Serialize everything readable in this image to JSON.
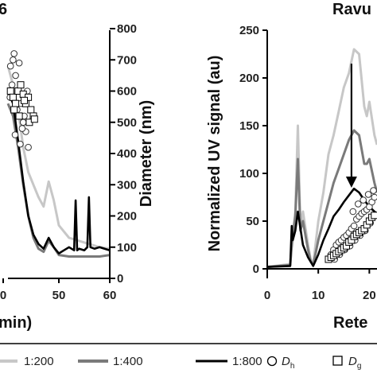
{
  "legend": {
    "entries": [
      {
        "label": "1:200",
        "color": "#c7c7c7",
        "kind": "line"
      },
      {
        "label": "1:400",
        "color": "#7a7a7a",
        "kind": "line"
      },
      {
        "label": "1:800",
        "color": "#000000",
        "kind": "line"
      },
      {
        "label": "D",
        "sub": "h",
        "kind": "circle-marker"
      },
      {
        "label": "D",
        "sub": "g",
        "kind": "square-marker"
      }
    ]
  },
  "chart_data": [
    {
      "type": "line",
      "panel": "left",
      "title": "6",
      "xlabel": "min)",
      "ylabel_right": "Diameter (nm)",
      "x_ticks": [
        "0",
        "50",
        "60"
      ],
      "xlim": [
        40,
        60
      ],
      "y_ticks": [
        "0",
        "100",
        "200",
        "300",
        "400",
        "500",
        "600",
        "700",
        "800"
      ],
      "ylim": [
        0,
        800
      ],
      "series": [
        {
          "name": "1:200",
          "color": "#c7c7c7",
          "x": [
            40,
            41,
            42,
            43,
            44,
            45,
            46,
            47,
            48,
            49,
            50,
            52,
            54,
            55,
            56,
            58,
            60
          ],
          "y": [
            680,
            620,
            540,
            420,
            340,
            300,
            260,
            230,
            310,
            250,
            170,
            130,
            120,
            115,
            110,
            100,
            95
          ]
        },
        {
          "name": "1:400",
          "color": "#7a7a7a",
          "x": [
            40,
            41,
            42,
            43,
            44,
            45,
            46,
            47,
            48,
            49,
            50,
            52,
            54,
            56,
            58,
            60
          ],
          "y": [
            560,
            520,
            420,
            300,
            200,
            130,
            95,
            85,
            120,
            100,
            75,
            70,
            70,
            70,
            70,
            75
          ]
        },
        {
          "name": "1:800",
          "color": "#000000",
          "x": [
            40,
            41,
            42,
            43,
            44,
            45,
            46,
            47,
            48,
            49,
            50,
            51,
            52,
            53,
            53.3,
            53.6,
            54,
            55,
            55.6,
            55.9,
            56.2,
            57,
            58,
            60
          ],
          "y": [
            600,
            560,
            440,
            310,
            200,
            140,
            110,
            95,
            130,
            100,
            80,
            90,
            100,
            90,
            250,
            90,
            95,
            90,
            100,
            260,
            100,
            95,
            100,
            90
          ]
        }
      ],
      "scatter": [
        {
          "name": "Dh",
          "marker": "circle",
          "x": [
            40.5,
            41,
            41.5,
            42,
            42.5,
            43,
            43.5,
            44,
            41.2,
            42.2,
            43.2,
            40.8,
            41.8,
            42.8,
            43.8,
            40.4,
            41.4,
            42.4
          ],
          "y": [
            680,
            700,
            650,
            600,
            560,
            500,
            470,
            420,
            720,
            690,
            520,
            620,
            540,
            480,
            600,
            580,
            460,
            430
          ]
        },
        {
          "name": "Dg",
          "marker": "square",
          "x": [
            40.5,
            41,
            41.5,
            42,
            42.5,
            43,
            43.5,
            44,
            44.5,
            45,
            41.2,
            42.2,
            43.2,
            44.2,
            45.2
          ],
          "y": [
            600,
            580,
            560,
            600,
            620,
            590,
            560,
            580,
            540,
            520,
            540,
            520,
            570,
            500,
            510
          ]
        }
      ]
    },
    {
      "type": "line",
      "panel": "right",
      "title": "Ravu",
      "xlabel": "Rete",
      "ylabel": "Normalized UV signal (au)",
      "x_ticks": [
        "0",
        "10",
        "20"
      ],
      "xlim": [
        0,
        21.5
      ],
      "y_ticks": [
        "0",
        "50",
        "100",
        "150",
        "200",
        "250"
      ],
      "ylim": [
        0,
        250
      ],
      "series": [
        {
          "name": "1:200",
          "color": "#c7c7c7",
          "x": [
            0,
            4.5,
            4.7,
            5,
            5.5,
            6,
            6.5,
            7,
            8,
            8.5,
            9,
            10,
            11,
            12,
            13,
            14,
            15,
            16,
            17,
            18,
            19,
            19.5,
            20,
            21,
            21.5
          ],
          "y": [
            2,
            5,
            20,
            35,
            60,
            150,
            45,
            60,
            25,
            10,
            5,
            50,
            80,
            120,
            140,
            165,
            190,
            205,
            230,
            225,
            170,
            160,
            175,
            140,
            130
          ]
        },
        {
          "name": "1:400",
          "color": "#7a7a7a",
          "x": [
            0,
            4.5,
            4.7,
            5,
            5.5,
            6,
            6.5,
            7,
            8,
            8.5,
            9,
            10,
            11,
            12,
            13,
            14,
            15,
            16,
            17,
            18,
            19,
            19.5,
            20,
            21,
            21.5
          ],
          "y": [
            2,
            4,
            18,
            35,
            55,
            115,
            40,
            50,
            20,
            8,
            4,
            30,
            50,
            70,
            90,
            105,
            120,
            135,
            145,
            140,
            110,
            110,
            115,
            90,
            80
          ]
        },
        {
          "name": "1:800",
          "color": "#000000",
          "x": [
            0,
            4.5,
            4.8,
            5,
            5.5,
            6,
            7,
            8,
            9,
            10,
            11,
            12,
            13,
            14,
            15,
            16,
            17,
            18,
            19,
            20,
            21,
            21.5
          ],
          "y": [
            2,
            3,
            45,
            30,
            40,
            60,
            25,
            12,
            3,
            15,
            30,
            42,
            55,
            62,
            70,
            77,
            84,
            80,
            72,
            65,
            60,
            58
          ]
        }
      ],
      "arrow": {
        "x": 16.5,
        "y_start": 215,
        "y_end": 85
      },
      "scatter": [
        {
          "name": "Dh",
          "marker": "circle",
          "x": [
            12.5,
            13,
            13.5,
            14,
            14.5,
            15,
            15.5,
            16,
            16.5,
            17,
            17.5,
            18,
            18.5,
            19,
            19.5,
            20,
            20.5,
            21,
            13.2,
            14.2,
            15.2,
            16.2,
            17.2,
            18.2,
            19.2,
            20.2,
            16.8,
            17.8,
            18.8,
            19.8,
            20.8
          ],
          "y": [
            15,
            20,
            25,
            28,
            30,
            33,
            35,
            38,
            42,
            45,
            52,
            55,
            58,
            60,
            62,
            65,
            70,
            75,
            10,
            15,
            20,
            24,
            30,
            35,
            40,
            48,
            60,
            68,
            72,
            78,
            82
          ]
        },
        {
          "name": "Dg",
          "marker": "square",
          "x": [
            12,
            12.5,
            13,
            13.5,
            14,
            14.5,
            15,
            15.5,
            16,
            16.5,
            17,
            17.5,
            18,
            18.5,
            19,
            19.5,
            20,
            20.5,
            21
          ],
          "y": [
            10,
            12,
            14,
            16,
            18,
            20,
            22,
            24,
            28,
            30,
            34,
            36,
            38,
            40,
            42,
            46,
            50,
            54,
            56
          ]
        }
      ]
    }
  ]
}
